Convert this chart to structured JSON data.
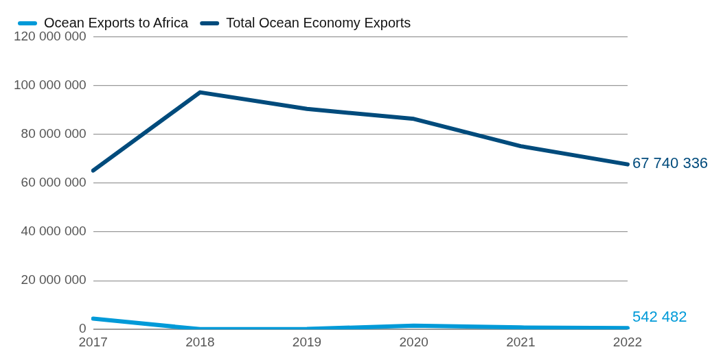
{
  "chart_data": {
    "type": "line",
    "categories": [
      "2017",
      "2018",
      "2019",
      "2020",
      "2021",
      "2022"
    ],
    "series": [
      {
        "name": "Ocean Exports to Africa",
        "color": "#009ad8",
        "values": [
          4400000,
          100000,
          200000,
          1500000,
          800000,
          542482
        ],
        "value_labels": [
          null,
          null,
          null,
          null,
          null,
          "542 482"
        ]
      },
      {
        "name": "Total Ocean Economy Exports",
        "color": "#004b7c",
        "values": [
          65200000,
          97300000,
          90500000,
          86400000,
          75200000,
          67740336
        ],
        "value_labels": [
          null,
          null,
          null,
          null,
          null,
          "67 740 336"
        ]
      }
    ],
    "ylim": [
      0,
      120000000
    ],
    "yticks": [
      {
        "value": 0,
        "label": "0"
      },
      {
        "value": 20000000,
        "label": "20 000 000"
      },
      {
        "value": 40000000,
        "label": "40 000 000"
      },
      {
        "value": 60000000,
        "label": "60 000 000"
      },
      {
        "value": 80000000,
        "label": "80 000 000"
      },
      {
        "value": 100000000,
        "label": "100 000 000"
      },
      {
        "value": 120000000,
        "label": "120 000 000"
      }
    ],
    "grid": "y",
    "legend": "top left",
    "marker": "none",
    "line_style": "solid"
  }
}
